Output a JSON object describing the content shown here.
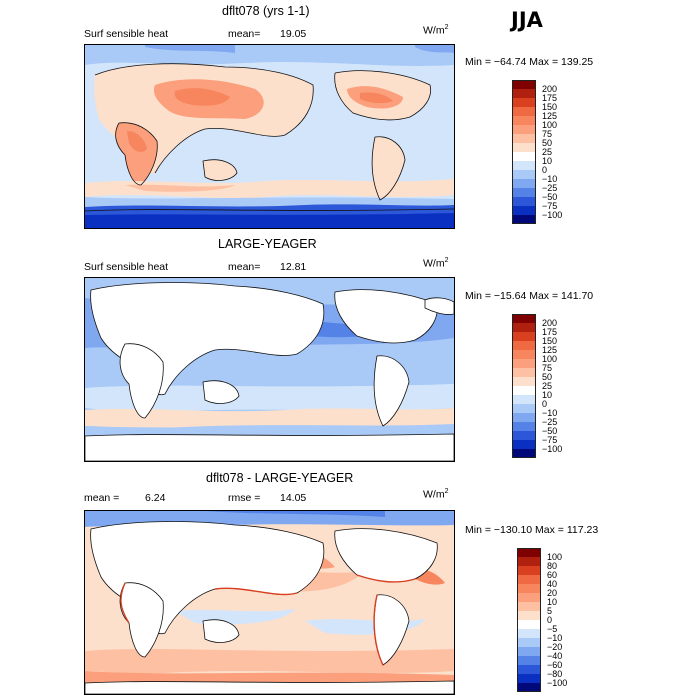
{
  "season": "JJA",
  "units_base": "W/m",
  "units_exp": "2",
  "panels": [
    {
      "title": "dflt078 (yrs 1-1)",
      "left_label": "Surf sensible heat",
      "stat_label": "mean=",
      "stat_value": "19.05",
      "minmax": "Min = −64.74  Max = 139.25",
      "levels": [
        "200",
        "175",
        "150",
        "125",
        "100",
        "75",
        "50",
        "25",
        "10",
        "0",
        "−10",
        "−25",
        "−50",
        "−75",
        "−100"
      ],
      "colors": [
        "#7f0000",
        "#b0200e",
        "#d8401f",
        "#ef6a43",
        "#f7855e",
        "#fb9f7c",
        "#fdc0a3",
        "#fde0cc",
        "#ffffff",
        "#d3e5fb",
        "#a9c9f7",
        "#7fa8f0",
        "#5582e6",
        "#2b57d8",
        "#0a30c2",
        "#00087a"
      ]
    },
    {
      "title": "LARGE-YEAGER",
      "left_label": "Surf sensible heat",
      "stat_label": "mean=",
      "stat_value": "12.81",
      "minmax": "Min = −15.64  Max = 141.70",
      "levels": [
        "200",
        "175",
        "150",
        "125",
        "100",
        "75",
        "50",
        "25",
        "10",
        "0",
        "−10",
        "−25",
        "−50",
        "−75",
        "−100"
      ],
      "colors": [
        "#7f0000",
        "#b0200e",
        "#d8401f",
        "#ef6a43",
        "#f7855e",
        "#fb9f7c",
        "#fdc0a3",
        "#fde0cc",
        "#ffffff",
        "#d3e5fb",
        "#a9c9f7",
        "#7fa8f0",
        "#5582e6",
        "#2b57d8",
        "#0a30c2",
        "#00087a"
      ]
    },
    {
      "title": "dflt078 - LARGE-YEAGER",
      "left_label": "mean =",
      "left_value": "6.24",
      "stat_label": "rmse =",
      "stat_value": "14.05",
      "minmax": "Min = −130.10  Max = 117.23",
      "levels": [
        "100",
        "80",
        "60",
        "40",
        "20",
        "10",
        "5",
        "0",
        "−5",
        "−10",
        "−20",
        "−40",
        "−60",
        "−80",
        "−100"
      ],
      "colors": [
        "#7f0000",
        "#b0200e",
        "#d8401f",
        "#ef6a43",
        "#f7855e",
        "#fb9f7c",
        "#fdc0a3",
        "#fde0cc",
        "#ffffff",
        "#d3e5fb",
        "#a9c9f7",
        "#7fa8f0",
        "#5582e6",
        "#2b57d8",
        "#0a30c2",
        "#00087a"
      ]
    }
  ]
}
